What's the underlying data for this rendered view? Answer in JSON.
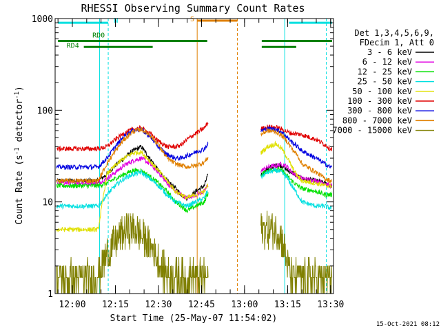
{
  "chart_data": {
    "type": "line",
    "title": "RHESSI Observing Summary Count Rates",
    "xlabel": "Start Time (25-May-07 11:54:02)",
    "ylabel": "Count Rate (s",
    "ylabel_sup": "-1",
    "ylabel_tail": " detector",
    "ylabel_end": ")",
    "x_unit": "minutes after 12:00 UT",
    "xlim": [
      -6,
      91
    ],
    "ylim": [
      1,
      1000
    ],
    "yscale": "log",
    "x_ticks": [
      {
        "label": "12:00",
        "value": 0
      },
      {
        "label": "12:15",
        "value": 15
      },
      {
        "label": "12:30",
        "value": 30
      },
      {
        "label": "12:45",
        "value": 45
      },
      {
        "label": "13:00",
        "value": 60
      },
      {
        "label": "13:15",
        "value": 75
      },
      {
        "label": "13:30",
        "value": 90
      }
    ],
    "y_ticks": [
      {
        "label": "1",
        "value": 1
      },
      {
        "label": "10",
        "value": 10
      },
      {
        "label": "100",
        "value": 100
      },
      {
        "label": "1000",
        "value": 1000
      }
    ],
    "legend": {
      "position": "right",
      "header": [
        "Det 1,3,4,5,6,9,",
        "FDecim 1, Att 0"
      ]
    },
    "timestamp": "15-Oct-2021 08:12",
    "series": [
      {
        "name": "3 - 6 keV",
        "color": "#000000",
        "x": [
          -5,
          1,
          4,
          6.5,
          9,
          12,
          15,
          18,
          21,
          24,
          27,
          30,
          33,
          36,
          38,
          40,
          43,
          46,
          47,
          66,
          68,
          71,
          73,
          75,
          76.5,
          78.5,
          80,
          85,
          88,
          90
        ],
        "y": [
          17,
          17,
          17,
          17,
          17,
          20,
          25,
          30,
          36,
          40,
          30,
          22,
          17,
          14,
          12,
          11,
          13,
          15,
          19,
          20,
          23,
          25,
          25,
          22,
          21,
          19,
          18,
          17,
          16,
          15
        ]
      },
      {
        "name": "6 - 12 keV",
        "color": "#e000e0",
        "x": [
          -5,
          1,
          4,
          6.5,
          9,
          12,
          15,
          18,
          21,
          24,
          27,
          30,
          33,
          36,
          38,
          40,
          43,
          46,
          47,
          66,
          68,
          71,
          73,
          75,
          76.5,
          78.5,
          80,
          85,
          88,
          90
        ],
        "y": [
          16,
          16,
          16,
          16,
          16,
          18,
          21,
          25,
          28,
          30,
          26,
          21,
          16,
          13,
          12,
          11,
          12,
          13,
          15,
          22,
          24,
          25,
          26,
          24,
          21,
          19,
          18,
          17,
          16,
          15
        ]
      },
      {
        "name": "12 - 25 keV",
        "color": "#00e000",
        "x": [
          -5,
          1,
          4,
          6.5,
          9,
          12,
          15,
          18,
          21,
          24,
          27,
          30,
          33,
          36,
          38,
          40,
          43,
          46,
          47,
          66,
          68,
          71,
          73,
          75,
          76.5,
          78.5,
          80,
          85,
          88,
          90
        ],
        "y": [
          15,
          15,
          15,
          15,
          15,
          16,
          18,
          20,
          22,
          22,
          19,
          16,
          13,
          10,
          9,
          8,
          9,
          10,
          12,
          20,
          22,
          23,
          22,
          19,
          17,
          15,
          14,
          13,
          12,
          12
        ]
      },
      {
        "name": "25 - 50 keV",
        "color": "#00e0e0",
        "x": [
          -5,
          1,
          4,
          6.5,
          9,
          12,
          15,
          18,
          21,
          24,
          27,
          30,
          33,
          36,
          38,
          40,
          43,
          46,
          47,
          66,
          68,
          71,
          73,
          75,
          76.5,
          78.5,
          80,
          85,
          88,
          90
        ],
        "y": [
          9,
          9,
          9,
          9,
          9,
          12,
          15,
          18,
          20,
          21,
          18,
          15,
          12,
          10,
          9.5,
          9,
          10,
          11,
          13,
          19,
          21,
          22,
          21,
          18,
          15,
          12,
          10,
          9,
          9,
          8.5
        ]
      },
      {
        "name": "50 - 100 keV",
        "color": "#e0e000",
        "x": [
          -5,
          1,
          4,
          6.5,
          9,
          12,
          15,
          18,
          21,
          24,
          27,
          30,
          33,
          36,
          38,
          40,
          43,
          46,
          47,
          66,
          68,
          71,
          73,
          75,
          76.5,
          78.5,
          80,
          85,
          88,
          90
        ],
        "y": [
          5,
          5,
          5,
          5,
          5,
          20,
          25,
          30,
          34,
          35,
          28,
          22,
          17,
          13,
          12,
          11,
          12,
          13,
          15,
          35,
          40,
          43,
          38,
          30,
          24,
          19,
          17,
          16,
          15,
          15
        ]
      },
      {
        "name": "100 - 300 keV",
        "color": "#e00000",
        "x": [
          -5,
          1,
          4,
          6.5,
          9,
          12,
          15,
          18,
          21,
          24,
          27,
          30,
          33,
          36,
          38,
          40,
          43,
          46,
          47,
          66,
          68,
          71,
          73,
          75,
          76.5,
          78.5,
          80,
          85,
          88,
          90
        ],
        "y": [
          38,
          38,
          38,
          38,
          38,
          40,
          48,
          56,
          62,
          64,
          56,
          46,
          40,
          40,
          42,
          48,
          56,
          64,
          72,
          63,
          66,
          65,
          62,
          58,
          56,
          55,
          54,
          48,
          42,
          38
        ]
      },
      {
        "name": "300 - 800 keV",
        "color": "#0000e0",
        "x": [
          -5,
          1,
          4,
          6.5,
          9,
          12,
          15,
          18,
          21,
          24,
          27,
          30,
          33,
          36,
          38,
          40,
          43,
          46,
          47,
          66,
          68,
          71,
          73,
          75,
          76.5,
          78.5,
          80,
          85,
          88,
          90
        ],
        "y": [
          24,
          24,
          24,
          24,
          24,
          30,
          40,
          52,
          60,
          62,
          52,
          40,
          33,
          30,
          30,
          32,
          35,
          38,
          42,
          60,
          63,
          62,
          58,
          50,
          45,
          40,
          36,
          30,
          26,
          24
        ]
      },
      {
        "name": "800 - 7000 keV",
        "color": "#e08000",
        "x": [
          -5,
          1,
          4,
          6.5,
          9,
          12,
          15,
          18,
          21,
          24,
          27,
          30,
          33,
          36,
          38,
          40,
          43,
          46,
          47,
          66,
          68,
          71,
          73,
          75,
          76.5,
          78.5,
          80,
          85,
          88,
          90
        ],
        "y": [
          17,
          17,
          17,
          17,
          17,
          26,
          36,
          48,
          58,
          62,
          54,
          42,
          30,
          26,
          25,
          24,
          25,
          27,
          30,
          55,
          60,
          58,
          53,
          45,
          38,
          32,
          26,
          21,
          18,
          17
        ]
      },
      {
        "name": "7000 - 15000 keV",
        "color": "#808000",
        "x": [
          -5,
          1,
          4,
          6.5,
          9,
          10,
          13,
          16,
          19,
          22,
          25,
          28,
          31,
          34,
          37,
          40,
          43,
          46,
          47,
          66,
          68,
          71,
          73,
          75,
          76.5,
          78.5,
          80,
          85,
          88,
          90
        ],
        "y": [
          1.5,
          1.5,
          1.5,
          1.5,
          1.5,
          2,
          3,
          4,
          5,
          5,
          4,
          3,
          2,
          1.5,
          1.5,
          1.5,
          1.5,
          1.5,
          1.5,
          5,
          5,
          5,
          4,
          2,
          1.5,
          1.5,
          1.5,
          1.5,
          1.5,
          1.5
        ]
      }
    ],
    "annotations": [
      {
        "label": "N",
        "color": "#00e0e0"
      },
      {
        "label": "RD0",
        "color": "#008000"
      },
      {
        "label": "RD4",
        "color": "#008000"
      },
      {
        "label": "S",
        "color": "#e08000"
      }
    ]
  }
}
